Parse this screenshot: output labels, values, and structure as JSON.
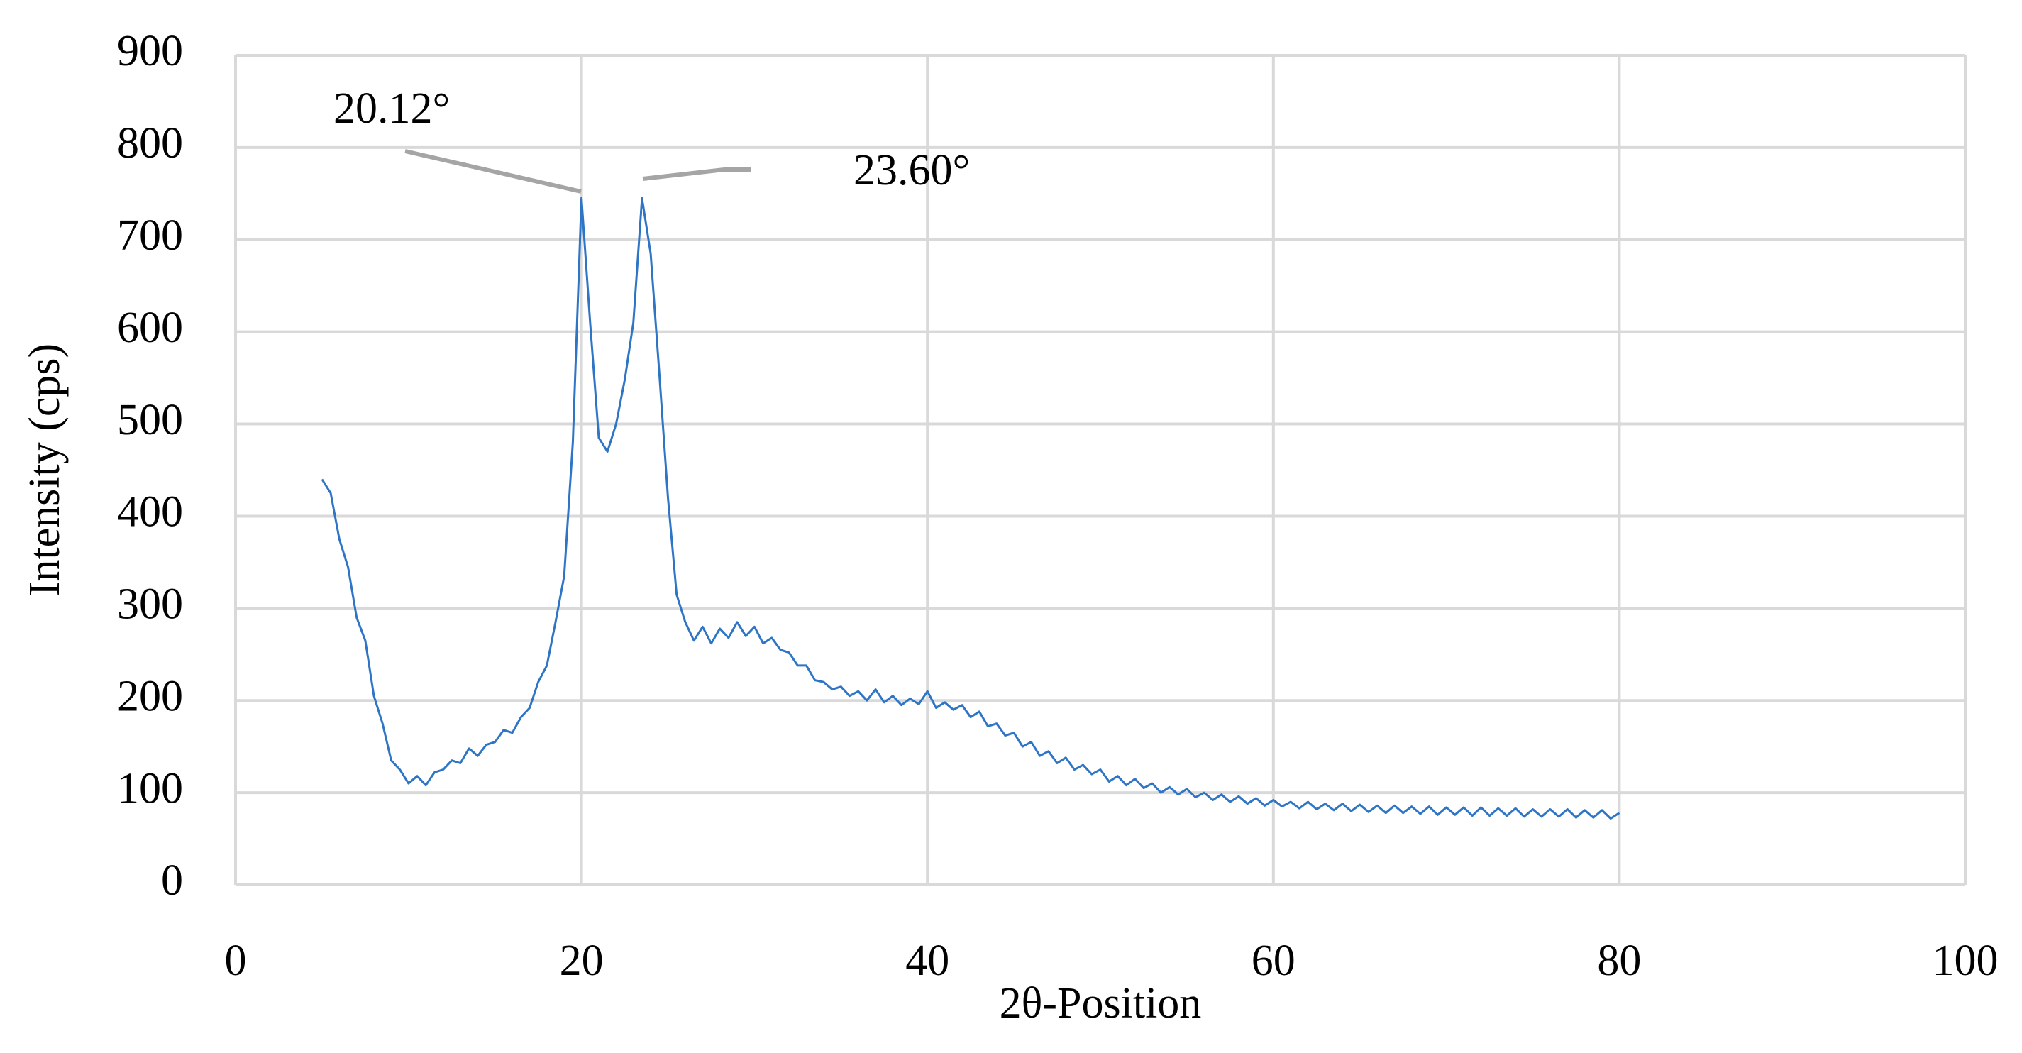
{
  "chart_data": {
    "type": "line",
    "x_label": "2θ-Position",
    "y_label": "Intensity (cps)",
    "annotations": [
      {
        "label": "20.12°"
      },
      {
        "label": "23.60°"
      }
    ],
    "x": [
      5,
      5.5,
      6,
      6.5,
      7,
      7.5,
      8,
      8.5,
      9,
      9.5,
      10,
      10.5,
      11,
      11.5,
      12,
      12.5,
      13,
      13.5,
      14,
      14.5,
      15,
      15.5,
      16,
      16.5,
      17,
      17.5,
      18,
      18.5,
      19,
      19.5,
      20,
      20.5,
      21,
      21.5,
      22,
      22.5,
      23,
      23.5,
      24,
      24.5,
      25,
      25.5,
      26,
      26.5,
      27,
      27.5,
      28,
      28.5,
      29,
      29.5,
      30,
      30.5,
      31,
      31.5,
      32,
      32.5,
      33,
      33.5,
      34,
      34.5,
      35,
      35.5,
      36,
      36.5,
      37,
      37.5,
      38,
      38.5,
      39,
      39.5,
      40,
      40.5,
      41,
      41.5,
      42,
      42.5,
      43,
      43.5,
      44,
      44.5,
      45,
      45.5,
      46,
      46.5,
      47,
      47.5,
      48,
      48.5,
      49,
      49.5,
      50,
      50.5,
      51,
      51.5,
      52,
      52.5,
      53,
      53.5,
      54,
      54.5,
      55,
      55.5,
      56,
      56.5,
      57,
      57.5,
      58,
      58.5,
      59,
      59.5,
      60,
      60.5,
      61,
      61.5,
      62,
      62.5,
      63,
      63.5,
      64,
      64.5,
      65,
      65.5,
      66,
      66.5,
      67,
      67.5,
      68,
      68.5,
      69,
      69.5,
      70,
      70.5,
      71,
      71.5,
      72,
      72.5,
      73,
      73.5,
      74,
      74.5,
      75,
      75.5,
      76,
      76.5,
      77,
      77.5,
      78,
      78.5,
      79,
      79.5,
      80
    ],
    "series": [
      {
        "color": "#2e75c6",
        "values": [
          440,
          425,
          375,
          345,
          290,
          265,
          205,
          175,
          135,
          125,
          110,
          118,
          108,
          122,
          125,
          135,
          132,
          148,
          140,
          152,
          155,
          168,
          165,
          182,
          192,
          220,
          238,
          285,
          335,
          480,
          745,
          610,
          485,
          470,
          500,
          548,
          610,
          745,
          685,
          555,
          420,
          315,
          285,
          265,
          280,
          262,
          278,
          268,
          285,
          270,
          280,
          262,
          268,
          255,
          252,
          238,
          238,
          222,
          220,
          212,
          215,
          205,
          210,
          200,
          212,
          198,
          205,
          195,
          202,
          196,
          210,
          192,
          198,
          190,
          195,
          182,
          188,
          172,
          175,
          162,
          165,
          150,
          155,
          140,
          145,
          132,
          138,
          125,
          130,
          120,
          125,
          112,
          118,
          108,
          115,
          105,
          110,
          100,
          106,
          98,
          104,
          95,
          100,
          92,
          98,
          90,
          96,
          88,
          94,
          86,
          92,
          85,
          90,
          83,
          90,
          82,
          88,
          81,
          88,
          80,
          87,
          79,
          86,
          78,
          86,
          78,
          85,
          77,
          85,
          76,
          84,
          76,
          84,
          75,
          84,
          75,
          83,
          75,
          83,
          74,
          82,
          74,
          82,
          74,
          82,
          73,
          81,
          73,
          81,
          72,
          78
        ]
      }
    ],
    "xlim": [
      0,
      100
    ],
    "xticks": [
      0,
      20,
      40,
      60,
      80,
      100
    ],
    "ylim": [
      0,
      900
    ],
    "yticks": [
      0,
      100,
      200,
      300,
      400,
      500,
      600,
      700,
      800,
      900
    ],
    "grid": true
  }
}
